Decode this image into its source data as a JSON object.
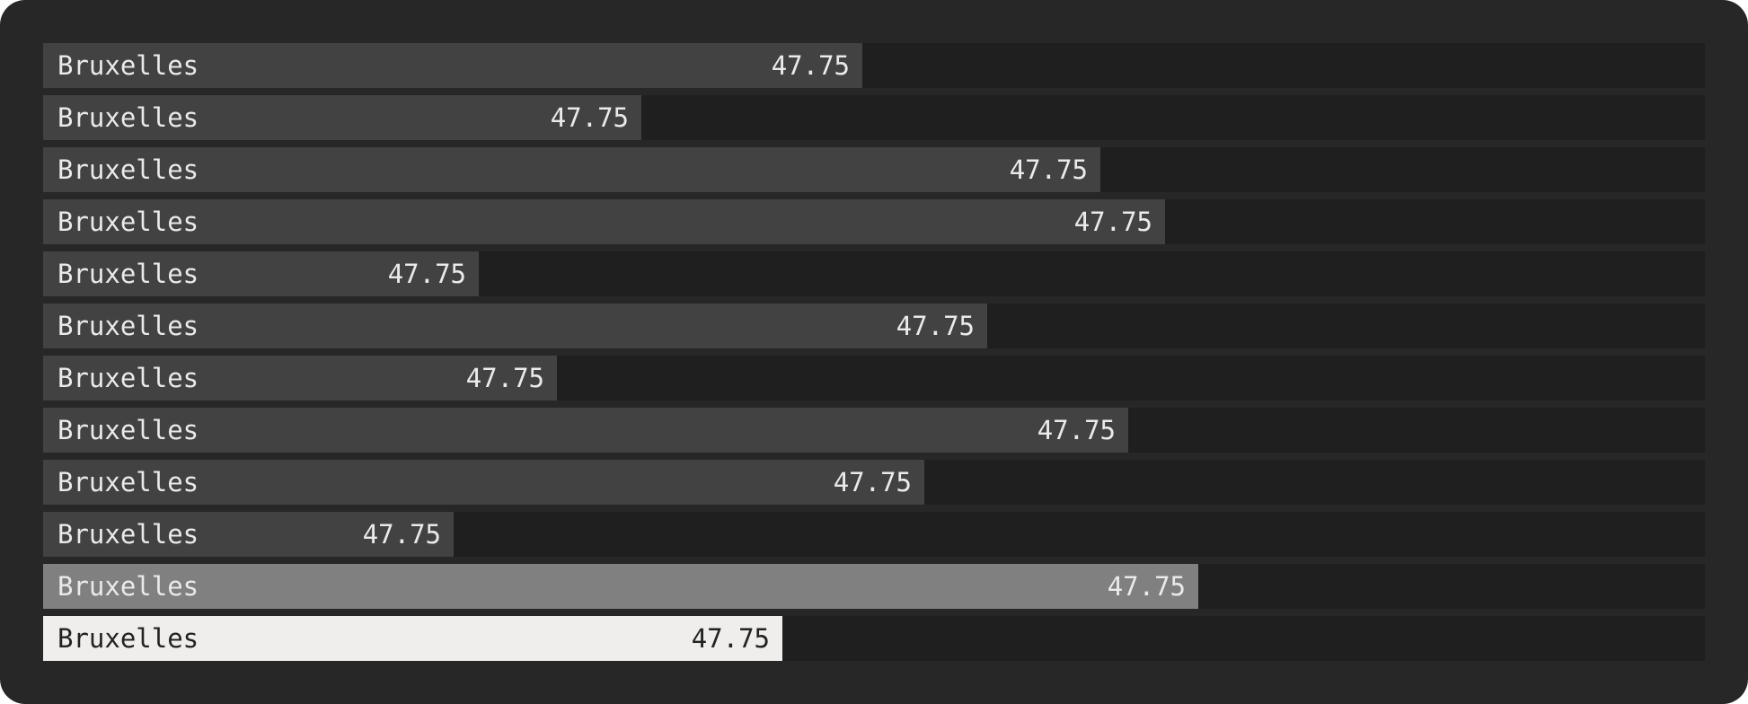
{
  "chart_data": {
    "type": "bar",
    "orientation": "horizontal",
    "categories": [
      "Bruxelles",
      "Bruxelles",
      "Bruxelles",
      "Bruxelles",
      "Bruxelles",
      "Bruxelles",
      "Bruxelles",
      "Bruxelles",
      "Bruxelles",
      "Bruxelles",
      "Bruxelles",
      "Bruxelles"
    ],
    "value_labels": [
      "47.75",
      "47.75",
      "47.75",
      "47.75",
      "47.75",
      "47.75",
      "47.75",
      "47.75",
      "47.75",
      "47.75",
      "47.75",
      "47.75"
    ],
    "relative_values": [
      0.493,
      0.36,
      0.636,
      0.675,
      0.262,
      0.568,
      0.309,
      0.653,
      0.53,
      0.247,
      0.695,
      0.445
    ],
    "highlight": [
      "none",
      "none",
      "none",
      "none",
      "none",
      "none",
      "none",
      "none",
      "none",
      "none",
      "medium",
      "strong"
    ],
    "grid": false,
    "legend": "none",
    "colors": {
      "panel_background": "#272727",
      "track": "#1f1f1f",
      "bar": "#424242",
      "bar_medium": "#808080",
      "bar_strong": "#efeeec",
      "text_light": "#eaeaea",
      "text_dark": "#222222"
    }
  }
}
